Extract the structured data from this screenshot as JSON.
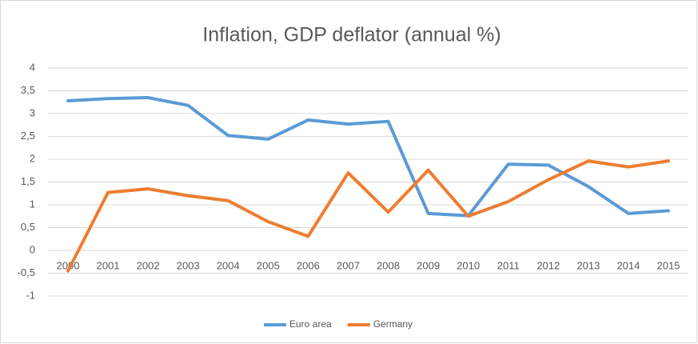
{
  "chart_data": {
    "type": "line",
    "title": "Inflation, GDP deflator (annual %)",
    "categories": [
      "2000",
      "2001",
      "2002",
      "2003",
      "2004",
      "2005",
      "2006",
      "2007",
      "2008",
      "2009",
      "2010",
      "2011",
      "2012",
      "2013",
      "2014",
      "2015"
    ],
    "series": [
      {
        "name": "Euro area",
        "color": "#5b9bd5",
        "values": [
          3.28,
          3.33,
          3.35,
          3.18,
          2.52,
          2.44,
          2.86,
          2.77,
          2.83,
          0.81,
          0.76,
          1.89,
          1.87,
          1.4,
          0.81,
          0.87
        ]
      },
      {
        "name": "Germany",
        "color": "#ed7d31",
        "values": [
          -0.45,
          1.27,
          1.35,
          1.2,
          1.09,
          0.63,
          0.31,
          1.7,
          0.84,
          1.76,
          0.75,
          1.07,
          1.55,
          1.96,
          1.83,
          1.96
        ]
      }
    ],
    "ylim": [
      -1,
      4
    ],
    "yticks": [
      -1,
      {
        "value": -0.5,
        "label": "-0,5"
      },
      0,
      {
        "value": 0.5,
        "label": "0,5"
      },
      1,
      {
        "value": 1.5,
        "label": "1,5"
      },
      2,
      {
        "value": 2.5,
        "label": "2,5"
      },
      3,
      {
        "value": 3.5,
        "label": "3,5"
      },
      4
    ],
    "grid": true,
    "legend": "bottom"
  }
}
